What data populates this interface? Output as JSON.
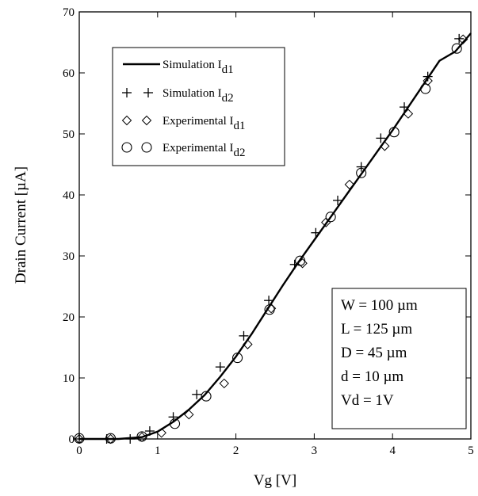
{
  "chart_data": {
    "type": "line",
    "xlabel": "Vg [V]",
    "ylabel": "Drain Current [µA]",
    "xlim": [
      0,
      5
    ],
    "ylim": [
      0,
      70
    ],
    "xticks": [
      "0",
      "1",
      "2",
      "3",
      "4",
      "5"
    ],
    "yticks": [
      "0",
      "10",
      "20",
      "30",
      "40",
      "50",
      "60",
      "70"
    ],
    "grid": false,
    "legend_position": "top-left",
    "series": [
      {
        "name": "Simulation I",
        "subscript": "d1",
        "style": "solid-line",
        "x": [
          0,
          0.5,
          0.8,
          1.0,
          1.2,
          1.4,
          1.6,
          1.8,
          2.0,
          2.2,
          2.4,
          2.6,
          2.8,
          3.0,
          3.2,
          3.4,
          3.6,
          3.8,
          4.0,
          4.2,
          4.4,
          4.6,
          4.8,
          5.0
        ],
        "y": [
          0,
          0,
          0.3,
          1.2,
          2.8,
          4.8,
          7.2,
          10.2,
          13.5,
          17.2,
          21.2,
          25.2,
          29.0,
          32.6,
          36.2,
          39.8,
          43.4,
          47.0,
          50.6,
          54.4,
          58.2,
          62.0,
          63.5,
          66.5
        ]
      },
      {
        "name": "Simulation I",
        "subscript": "d2",
        "style": "plus",
        "x": [
          0.0,
          0.35,
          0.65,
          0.9,
          1.2,
          1.5,
          1.8,
          2.1,
          2.42,
          2.75,
          3.02,
          3.3,
          3.6,
          3.85,
          4.15,
          4.45,
          4.85
        ],
        "y": [
          0,
          0,
          0,
          1.3,
          3.6,
          7.3,
          11.8,
          16.9,
          22.7,
          28.6,
          33.8,
          39.1,
          44.6,
          49.3,
          54.4,
          59.4,
          65.6
        ]
      },
      {
        "name": "Experimental I",
        "subscript": "d1",
        "style": "diamond",
        "x": [
          0.0,
          0.4,
          0.8,
          1.05,
          1.4,
          1.85,
          2.15,
          2.45,
          2.85,
          3.15,
          3.45,
          3.9,
          4.2,
          4.45,
          4.9
        ],
        "y": [
          0,
          0,
          0.3,
          1.0,
          4.0,
          9.1,
          15.5,
          21.4,
          28.8,
          35.5,
          41.7,
          48.0,
          53.3,
          58.7,
          65.5
        ]
      },
      {
        "name": "Experimental I",
        "subscript": "d2",
        "style": "circle",
        "x": [
          0.0,
          0.4,
          0.8,
          1.22,
          1.62,
          2.02,
          2.43,
          2.82,
          3.21,
          3.6,
          4.02,
          4.42,
          4.82
        ],
        "y": [
          0.1,
          0.1,
          0.4,
          2.5,
          7.0,
          13.3,
          21.2,
          29.2,
          36.4,
          43.6,
          50.3,
          57.4,
          64.0
        ]
      }
    ],
    "legend": [
      {
        "label": "Simulation  I",
        "sub": "d1",
        "marker": "line"
      },
      {
        "label": "Simulation  I",
        "sub": "d2",
        "marker": "plus"
      },
      {
        "label": "Experimental I",
        "sub": "d1",
        "marker": "diamond"
      },
      {
        "label": "Experimental I",
        "sub": "d2",
        "marker": "circle"
      }
    ],
    "info_box": [
      "W = 100 µm",
      "L  = 125 µm",
      "D  = 45  µm",
      "d  = 10  µm",
      "Vd = 1V"
    ]
  }
}
